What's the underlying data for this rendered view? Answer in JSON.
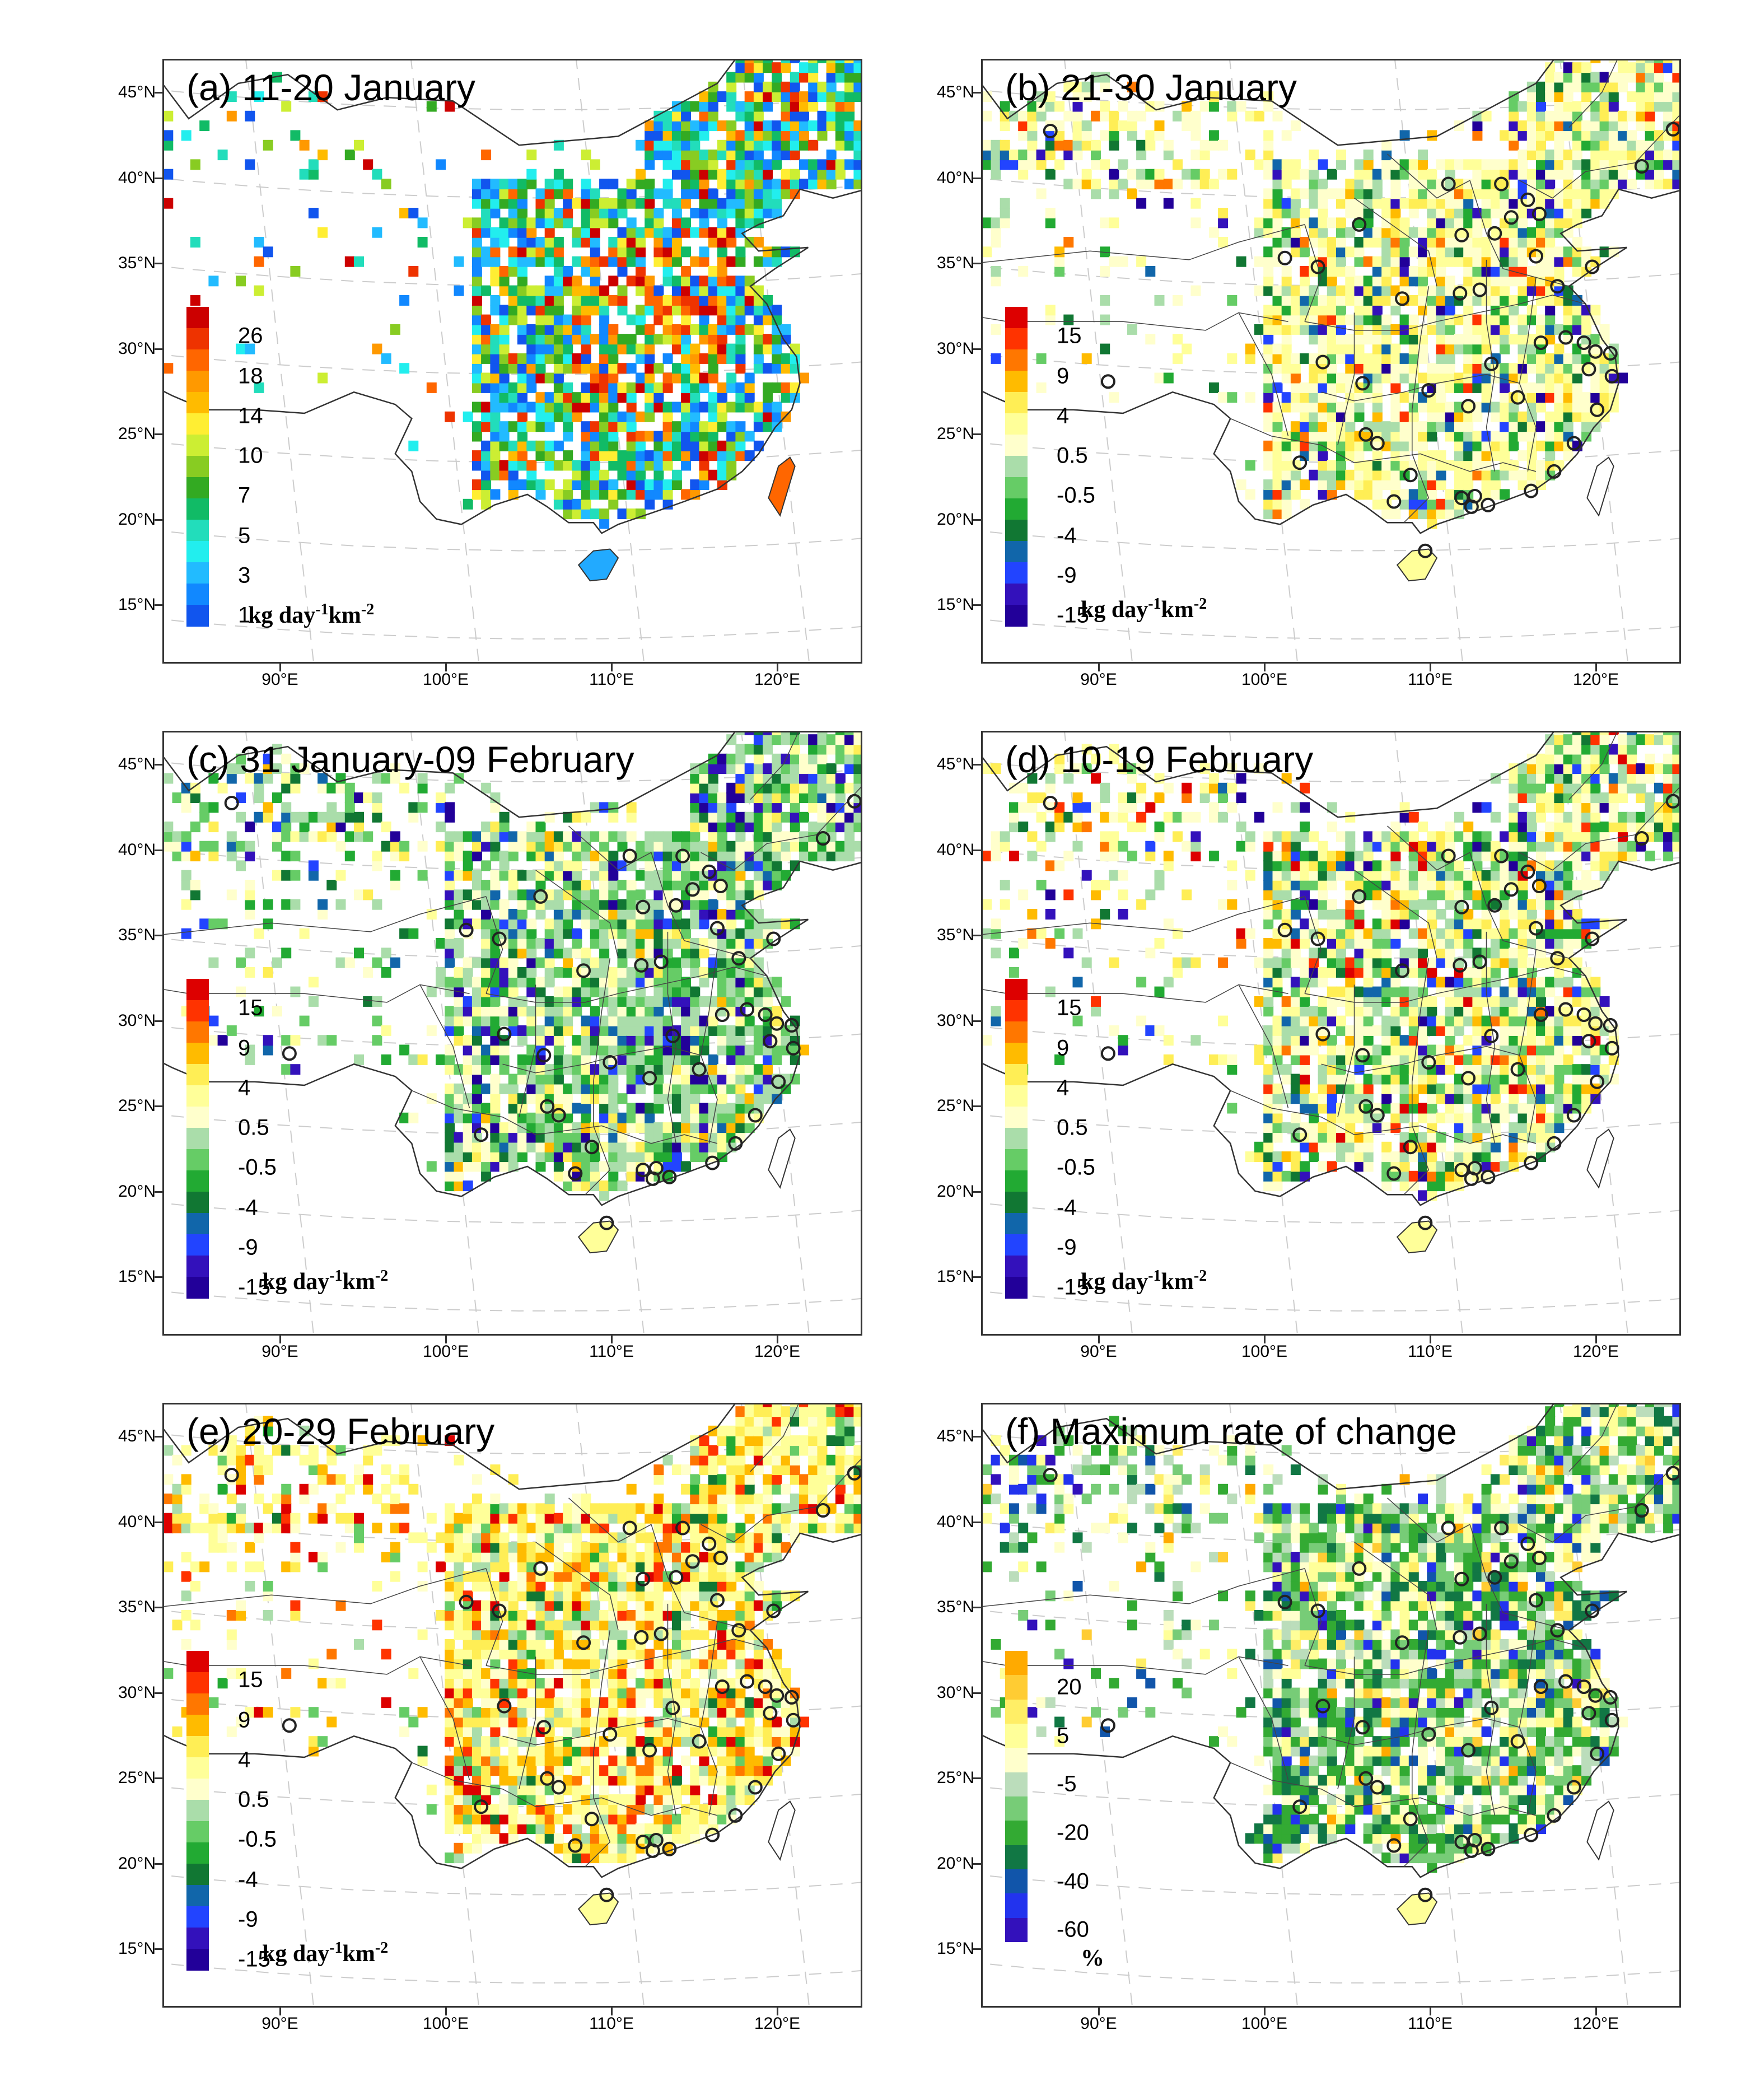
{
  "figure": {
    "lat_labels": [
      "45°N",
      "40°N",
      "35°N",
      "30°N",
      "25°N",
      "20°N",
      "15°N"
    ],
    "lon_labels": [
      "90°E",
      "100°E",
      "110°E",
      "120°E"
    ],
    "units_flux": {
      "pre": "kg day",
      "exp1": "-1",
      "mid": "km",
      "exp2": "-2"
    },
    "units_percent": "%"
  },
  "panels": [
    {
      "id": "a",
      "title": "(a) 11-20 January",
      "kind": "absolute",
      "colorbar": {
        "labels": [
          "26",
          "18",
          "14",
          "10",
          "7",
          "5",
          "3",
          "1"
        ],
        "colors": [
          "#cc0000",
          "#ee3300",
          "#ff6600",
          "#ff9900",
          "#ffbb00",
          "#ffee33",
          "#ccee33",
          "#88cc22",
          "#33aa22",
          "#11bb66",
          "#22ddbb",
          "#22eeee",
          "#22bbff",
          "#1188ff",
          "#1155ee"
        ]
      }
    },
    {
      "id": "b",
      "title": "(b) 21-30 January",
      "kind": "diff",
      "colorbar": {
        "labels": [
          "15",
          "9",
          "4",
          "0.5",
          "-0.5",
          "-4",
          "-9",
          "-15"
        ],
        "colors": [
          "#dd0000",
          "#ff3300",
          "#ff7700",
          "#ffbb00",
          "#ffee55",
          "#ffff99",
          "#ffffcc",
          "#aaddaa",
          "#66cc66",
          "#22aa33",
          "#117733",
          "#1166aa",
          "#2244ff",
          "#3311bb",
          "#220099"
        ]
      }
    },
    {
      "id": "c",
      "title": "(c) 31 January-09 February",
      "kind": "diff",
      "colorbar": {
        "labels": [
          "15",
          "9",
          "4",
          "0.5",
          "-0.5",
          "-4",
          "-9",
          "-15"
        ],
        "colors": [
          "#dd0000",
          "#ff3300",
          "#ff7700",
          "#ffbb00",
          "#ffee55",
          "#ffff99",
          "#ffffcc",
          "#aaddaa",
          "#66cc66",
          "#22aa33",
          "#117733",
          "#1166aa",
          "#2244ff",
          "#3311bb",
          "#220099"
        ]
      }
    },
    {
      "id": "d",
      "title": "(d) 10-19 February",
      "kind": "diff",
      "colorbar": {
        "labels": [
          "15",
          "9",
          "4",
          "0.5",
          "-0.5",
          "-4",
          "-9",
          "-15"
        ],
        "colors": [
          "#dd0000",
          "#ff3300",
          "#ff7700",
          "#ffbb00",
          "#ffee55",
          "#ffff99",
          "#ffffcc",
          "#aaddaa",
          "#66cc66",
          "#22aa33",
          "#117733",
          "#1166aa",
          "#2244ff",
          "#3311bb",
          "#220099"
        ]
      }
    },
    {
      "id": "e",
      "title": "(e) 20-29 February",
      "kind": "diff",
      "colorbar": {
        "labels": [
          "15",
          "9",
          "4",
          "0.5",
          "-0.5",
          "-4",
          "-9",
          "-15"
        ],
        "colors": [
          "#dd0000",
          "#ff3300",
          "#ff7700",
          "#ffbb00",
          "#ffee55",
          "#ffff99",
          "#ffffcc",
          "#aaddaa",
          "#66cc66",
          "#22aa33",
          "#117733",
          "#1166aa",
          "#2244ff",
          "#3311bb",
          "#220099"
        ]
      }
    },
    {
      "id": "f",
      "title": "(f) Maximum rate of change",
      "kind": "rate",
      "colorbar": {
        "labels": [
          "20",
          "5",
          "-5",
          "-20",
          "-40",
          "-60"
        ],
        "colors": [
          "#ffaa00",
          "#ffcc33",
          "#ffee66",
          "#ffff99",
          "#ffffcc",
          "#bbddbb",
          "#77cc77",
          "#33aa33",
          "#117744",
          "#1155aa",
          "#2233ee",
          "#3311bb"
        ]
      }
    }
  ]
}
